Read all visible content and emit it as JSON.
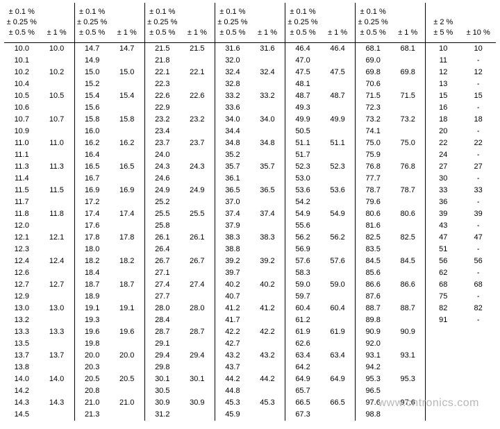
{
  "table": {
    "background_color": "#ffffff",
    "text_color": "#000000",
    "border_color": "#000000",
    "font_family": "Arial",
    "font_size_pt": 8,
    "header_a": "± 0.1 %\n± 0.25 %\n± 0.5 %",
    "header_b": "± 1 %",
    "header_last_a": "± 2 %\n± 5 %",
    "header_last_b": "± 10 %",
    "groups": [
      {
        "a": [
          "10.0",
          "10.1",
          "10.2",
          "10.4",
          "10.5",
          "10.6",
          "10.7",
          "10.9",
          "11.0",
          "11.1",
          "11.3",
          "11.4",
          "11.5",
          "11.7",
          "11.8",
          "12.0",
          "12.1",
          "12.3",
          "12.4",
          "12.6",
          "12.7",
          "12.9",
          "13.0",
          "13.2",
          "13.3",
          "13.5",
          "13.7",
          "13.8",
          "14.0",
          "14.2",
          "14.3",
          "14.5"
        ],
        "b": [
          "10.0",
          "",
          "10.2",
          "",
          "10.5",
          "",
          "10.7",
          "",
          "11.0",
          "",
          "11.3",
          "",
          "11.5",
          "",
          "11.8",
          "",
          "12.1",
          "",
          "12.4",
          "",
          "12.7",
          "",
          "13.0",
          "",
          "13.3",
          "",
          "13.7",
          "",
          "14.0",
          "",
          "14.3",
          ""
        ]
      },
      {
        "a": [
          "14.7",
          "14.9",
          "15.0",
          "15.2",
          "15.4",
          "15.6",
          "15.8",
          "16.0",
          "16.2",
          "16.4",
          "16.5",
          "16.7",
          "16.9",
          "17.2",
          "17.4",
          "17.6",
          "17.8",
          "18.0",
          "18.2",
          "18.4",
          "18.7",
          "18.9",
          "19.1",
          "19.3",
          "19.6",
          "19.8",
          "20.0",
          "20.3",
          "20.5",
          "20.8",
          "21.0",
          "21.3"
        ],
        "b": [
          "14.7",
          "",
          "15.0",
          "",
          "15.4",
          "",
          "15.8",
          "",
          "16.2",
          "",
          "16.5",
          "",
          "16.9",
          "",
          "17.4",
          "",
          "17.8",
          "",
          "18.2",
          "",
          "18.7",
          "",
          "19.1",
          "",
          "19.6",
          "",
          "20.0",
          "",
          "20.5",
          "",
          "21.0",
          ""
        ]
      },
      {
        "a": [
          "21.5",
          "21.8",
          "22.1",
          "22.3",
          "22.6",
          "22.9",
          "23.2",
          "23.4",
          "23.7",
          "24.0",
          "24.3",
          "24.6",
          "24.9",
          "25.2",
          "25.5",
          "25.8",
          "26.1",
          "26.4",
          "26.7",
          "27.1",
          "27.4",
          "27.7",
          "28.0",
          "28.4",
          "28.7",
          "29.1",
          "29.4",
          "29.8",
          "30.1",
          "30.5",
          "30.9",
          "31.2"
        ],
        "b": [
          "21.5",
          "",
          "22.1",
          "",
          "22.6",
          "",
          "23.2",
          "",
          "23.7",
          "",
          "24.3",
          "",
          "24.9",
          "",
          "25.5",
          "",
          "26.1",
          "",
          "26.7",
          "",
          "27.4",
          "",
          "28.0",
          "",
          "28.7",
          "",
          "29.4",
          "",
          "30.1",
          "",
          "30.9",
          ""
        ]
      },
      {
        "a": [
          "31.6",
          "32.0",
          "32.4",
          "32.8",
          "33.2",
          "33.6",
          "34.0",
          "34.4",
          "34.8",
          "35.2",
          "35.7",
          "36.1",
          "36.5",
          "37.0",
          "37.4",
          "37.9",
          "38.3",
          "38.8",
          "39.2",
          "39.7",
          "40.2",
          "40.7",
          "41.2",
          "41.7",
          "42.2",
          "42.7",
          "43.2",
          "43.7",
          "44.2",
          "44.8",
          "45.3",
          "45.9"
        ],
        "b": [
          "31.6",
          "",
          "32.4",
          "",
          "33.2",
          "",
          "34.0",
          "",
          "34.8",
          "",
          "35.7",
          "",
          "36.5",
          "",
          "37.4",
          "",
          "38.3",
          "",
          "39.2",
          "",
          "40.2",
          "",
          "41.2",
          "",
          "42.2",
          "",
          "43.2",
          "",
          "44.2",
          "",
          "45.3",
          ""
        ]
      },
      {
        "a": [
          "46.4",
          "47.0",
          "47.5",
          "48.1",
          "48.7",
          "49.3",
          "49.9",
          "50.5",
          "51.1",
          "51.7",
          "52.3",
          "53.0",
          "53.6",
          "54.2",
          "54.9",
          "55.6",
          "56.2",
          "56.9",
          "57.6",
          "58.3",
          "59.0",
          "59.7",
          "60.4",
          "61.2",
          "61.9",
          "62.6",
          "63.4",
          "64.2",
          "64.9",
          "65.7",
          "66.5",
          "67.3"
        ],
        "b": [
          "46.4",
          "",
          "47.5",
          "",
          "48.7",
          "",
          "49.9",
          "",
          "51.1",
          "",
          "52.3",
          "",
          "53.6",
          "",
          "54.9",
          "",
          "56.2",
          "",
          "57.6",
          "",
          "59.0",
          "",
          "60.4",
          "",
          "61.9",
          "",
          "63.4",
          "",
          "64.9",
          "",
          "66.5",
          ""
        ]
      },
      {
        "a": [
          "68.1",
          "69.0",
          "69.8",
          "70.6",
          "71.5",
          "72.3",
          "73.2",
          "74.1",
          "75.0",
          "75.9",
          "76.8",
          "77.7",
          "78.7",
          "79.6",
          "80.6",
          "81.6",
          "82.5",
          "83.5",
          "84.5",
          "85.6",
          "86.6",
          "87.6",
          "88.7",
          "89.8",
          "90.9",
          "92.0",
          "93.1",
          "94.2",
          "95.3",
          "96.5",
          "97.6",
          "98.8"
        ],
        "b": [
          "68.1",
          "",
          "69.8",
          "",
          "71.5",
          "",
          "73.2",
          "",
          "75.0",
          "",
          "76.8",
          "",
          "78.7",
          "",
          "80.6",
          "",
          "82.5",
          "",
          "84.5",
          "",
          "86.6",
          "",
          "88.7",
          "",
          "90.9",
          "",
          "93.1",
          "",
          "95.3",
          "",
          "97.6",
          ""
        ]
      },
      {
        "a": [
          "10",
          "11",
          "12",
          "13",
          "15",
          "16",
          "18",
          "20",
          "22",
          "24",
          "27",
          "30",
          "33",
          "36",
          "39",
          "43",
          "47",
          "51",
          "56",
          "62",
          "68",
          "75",
          "82",
          "91",
          "",
          "",
          "",
          "",
          "",
          "",
          "",
          ""
        ],
        "b": [
          "10",
          "-",
          "12",
          "-",
          "15",
          "-",
          "18",
          "-",
          "22",
          "-",
          "27",
          "-",
          "33",
          "-",
          "39",
          "-",
          "47",
          "-",
          "56",
          "-",
          "68",
          "-",
          "82",
          "-",
          "",
          "",
          "",
          "",
          "",
          "",
          "",
          ""
        ]
      }
    ]
  },
  "watermark": "www.cntronics.com"
}
